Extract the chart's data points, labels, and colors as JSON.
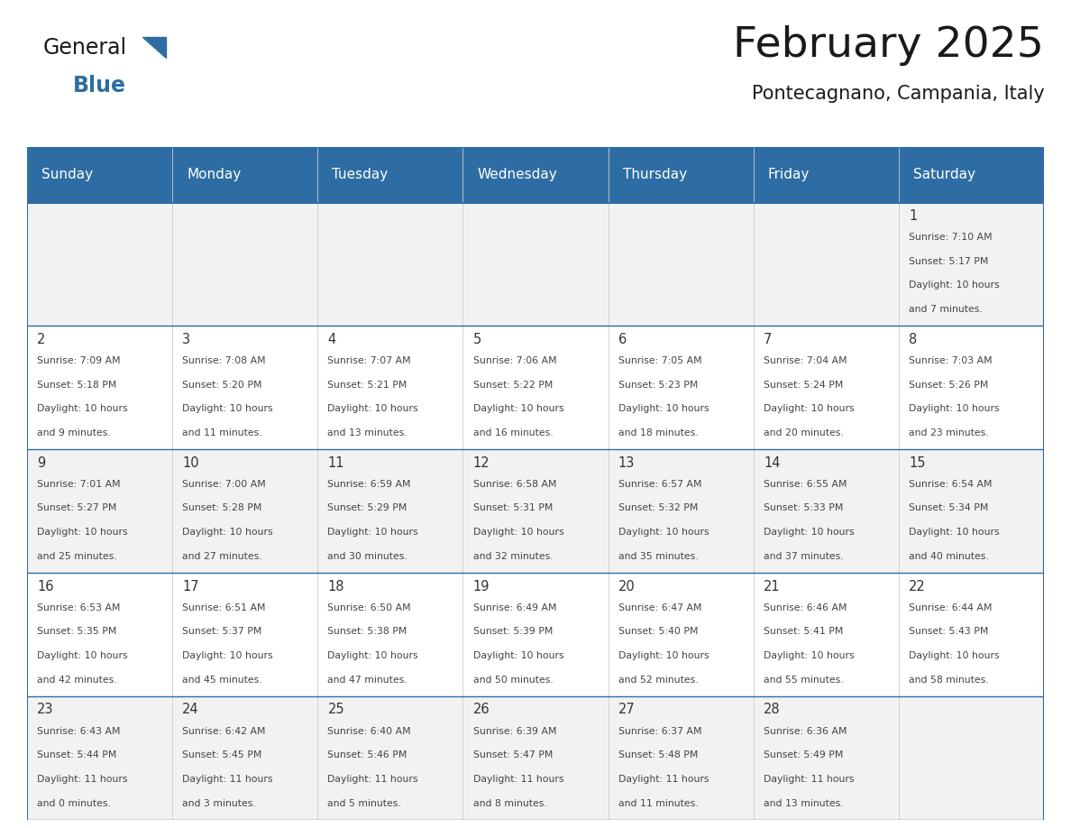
{
  "title": "February 2025",
  "subtitle": "Pontecagnano, Campania, Italy",
  "header_bg": "#2E6DA4",
  "header_text": "#FFFFFF",
  "cell_bg_odd": "#F2F2F2",
  "cell_bg_even": "#FFFFFF",
  "day_names": [
    "Sunday",
    "Monday",
    "Tuesday",
    "Wednesday",
    "Thursday",
    "Friday",
    "Saturday"
  ],
  "line_color": "#2E6DA4",
  "general_color": "#2E6DA4",
  "days": [
    {
      "day": 1,
      "col": 6,
      "row": 0,
      "sunrise": "7:10 AM",
      "sunset": "5:17 PM",
      "daylight": "10 hours and 7 minutes."
    },
    {
      "day": 2,
      "col": 0,
      "row": 1,
      "sunrise": "7:09 AM",
      "sunset": "5:18 PM",
      "daylight": "10 hours and 9 minutes."
    },
    {
      "day": 3,
      "col": 1,
      "row": 1,
      "sunrise": "7:08 AM",
      "sunset": "5:20 PM",
      "daylight": "10 hours and 11 minutes."
    },
    {
      "day": 4,
      "col": 2,
      "row": 1,
      "sunrise": "7:07 AM",
      "sunset": "5:21 PM",
      "daylight": "10 hours and 13 minutes."
    },
    {
      "day": 5,
      "col": 3,
      "row": 1,
      "sunrise": "7:06 AM",
      "sunset": "5:22 PM",
      "daylight": "10 hours and 16 minutes."
    },
    {
      "day": 6,
      "col": 4,
      "row": 1,
      "sunrise": "7:05 AM",
      "sunset": "5:23 PM",
      "daylight": "10 hours and 18 minutes."
    },
    {
      "day": 7,
      "col": 5,
      "row": 1,
      "sunrise": "7:04 AM",
      "sunset": "5:24 PM",
      "daylight": "10 hours and 20 minutes."
    },
    {
      "day": 8,
      "col": 6,
      "row": 1,
      "sunrise": "7:03 AM",
      "sunset": "5:26 PM",
      "daylight": "10 hours and 23 minutes."
    },
    {
      "day": 9,
      "col": 0,
      "row": 2,
      "sunrise": "7:01 AM",
      "sunset": "5:27 PM",
      "daylight": "10 hours and 25 minutes."
    },
    {
      "day": 10,
      "col": 1,
      "row": 2,
      "sunrise": "7:00 AM",
      "sunset": "5:28 PM",
      "daylight": "10 hours and 27 minutes."
    },
    {
      "day": 11,
      "col": 2,
      "row": 2,
      "sunrise": "6:59 AM",
      "sunset": "5:29 PM",
      "daylight": "10 hours and 30 minutes."
    },
    {
      "day": 12,
      "col": 3,
      "row": 2,
      "sunrise": "6:58 AM",
      "sunset": "5:31 PM",
      "daylight": "10 hours and 32 minutes."
    },
    {
      "day": 13,
      "col": 4,
      "row": 2,
      "sunrise": "6:57 AM",
      "sunset": "5:32 PM",
      "daylight": "10 hours and 35 minutes."
    },
    {
      "day": 14,
      "col": 5,
      "row": 2,
      "sunrise": "6:55 AM",
      "sunset": "5:33 PM",
      "daylight": "10 hours and 37 minutes."
    },
    {
      "day": 15,
      "col": 6,
      "row": 2,
      "sunrise": "6:54 AM",
      "sunset": "5:34 PM",
      "daylight": "10 hours and 40 minutes."
    },
    {
      "day": 16,
      "col": 0,
      "row": 3,
      "sunrise": "6:53 AM",
      "sunset": "5:35 PM",
      "daylight": "10 hours and 42 minutes."
    },
    {
      "day": 17,
      "col": 1,
      "row": 3,
      "sunrise": "6:51 AM",
      "sunset": "5:37 PM",
      "daylight": "10 hours and 45 minutes."
    },
    {
      "day": 18,
      "col": 2,
      "row": 3,
      "sunrise": "6:50 AM",
      "sunset": "5:38 PM",
      "daylight": "10 hours and 47 minutes."
    },
    {
      "day": 19,
      "col": 3,
      "row": 3,
      "sunrise": "6:49 AM",
      "sunset": "5:39 PM",
      "daylight": "10 hours and 50 minutes."
    },
    {
      "day": 20,
      "col": 4,
      "row": 3,
      "sunrise": "6:47 AM",
      "sunset": "5:40 PM",
      "daylight": "10 hours and 52 minutes."
    },
    {
      "day": 21,
      "col": 5,
      "row": 3,
      "sunrise": "6:46 AM",
      "sunset": "5:41 PM",
      "daylight": "10 hours and 55 minutes."
    },
    {
      "day": 22,
      "col": 6,
      "row": 3,
      "sunrise": "6:44 AM",
      "sunset": "5:43 PM",
      "daylight": "10 hours and 58 minutes."
    },
    {
      "day": 23,
      "col": 0,
      "row": 4,
      "sunrise": "6:43 AM",
      "sunset": "5:44 PM",
      "daylight": "11 hours and 0 minutes."
    },
    {
      "day": 24,
      "col": 1,
      "row": 4,
      "sunrise": "6:42 AM",
      "sunset": "5:45 PM",
      "daylight": "11 hours and 3 minutes."
    },
    {
      "day": 25,
      "col": 2,
      "row": 4,
      "sunrise": "6:40 AM",
      "sunset": "5:46 PM",
      "daylight": "11 hours and 5 minutes."
    },
    {
      "day": 26,
      "col": 3,
      "row": 4,
      "sunrise": "6:39 AM",
      "sunset": "5:47 PM",
      "daylight": "11 hours and 8 minutes."
    },
    {
      "day": 27,
      "col": 4,
      "row": 4,
      "sunrise": "6:37 AM",
      "sunset": "5:48 PM",
      "daylight": "11 hours and 11 minutes."
    },
    {
      "day": 28,
      "col": 5,
      "row": 4,
      "sunrise": "6:36 AM",
      "sunset": "5:49 PM",
      "daylight": "11 hours and 13 minutes."
    }
  ]
}
